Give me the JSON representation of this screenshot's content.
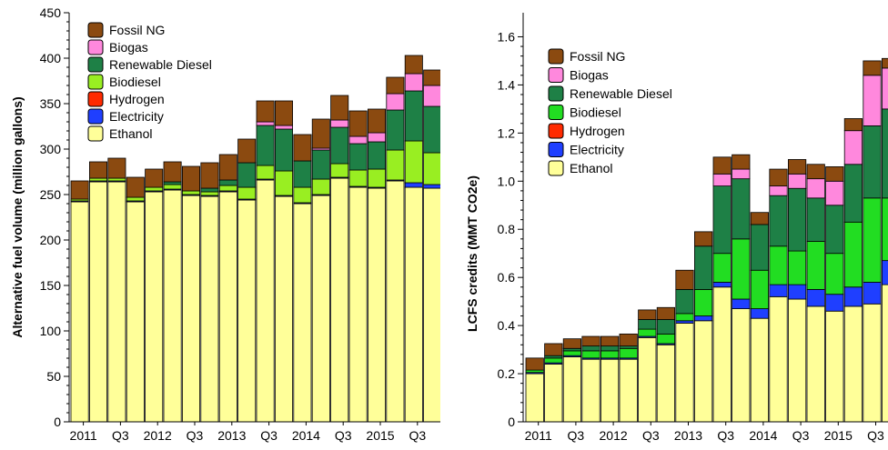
{
  "colors": {
    "Ethanol": "#ffff99",
    "Electricity": "#1f3fff",
    "Hydrogen": "#ff2a00",
    "Biodiesel_left": "#99ee22",
    "Biodiesel_right": "#22dd22",
    "Renewable Diesel": "#1e8046",
    "Biogas": "#ff88dd",
    "Fossil NG": "#8b4a10",
    "axis": "#000000"
  },
  "chart_data": [
    {
      "type": "bar",
      "stacked": true,
      "ylabel": "Alternative fuel volume (million gallons)",
      "ylim": [
        0,
        450
      ],
      "yticks": [
        0,
        50,
        100,
        150,
        200,
        250,
        300,
        350,
        400,
        450
      ],
      "x_tick_labels": [
        "2011",
        "Q3",
        "2012",
        "Q3",
        "2013",
        "Q3",
        "2014",
        "Q3",
        "2015",
        "Q3"
      ],
      "legend": [
        "Fossil NG",
        "Biogas",
        "Renewable Diesel",
        "Biodiesel",
        "Hydrogen",
        "Electricity",
        "Ethanol"
      ],
      "legend_position": "top-left",
      "categories": [
        "2011 Q1",
        "2011 Q2",
        "2011 Q3",
        "2011 Q4",
        "2012 Q1",
        "2012 Q2",
        "2012 Q3",
        "2012 Q4",
        "2013 Q1",
        "2013 Q2",
        "2013 Q3",
        "2013 Q4",
        "2014 Q1",
        "2014 Q2",
        "2014 Q3",
        "2014 Q4",
        "2015 Q1",
        "2015 Q2",
        "2015 Q3",
        "2015 Q4"
      ],
      "series": [
        {
          "name": "Ethanol",
          "values": [
            242,
            264,
            264,
            242,
            253,
            255,
            249,
            248,
            253,
            244,
            266,
            248,
            240,
            249,
            268,
            258,
            257,
            265,
            258,
            257
          ]
        },
        {
          "name": "Electricity",
          "values": [
            1,
            1,
            1,
            1,
            1,
            1,
            1,
            1,
            1,
            1,
            1,
            1,
            1,
            1,
            1,
            1,
            1,
            1,
            5,
            4
          ]
        },
        {
          "name": "Hydrogen",
          "values": [
            0,
            0,
            0,
            0,
            0,
            0,
            0,
            0,
            0,
            0,
            0,
            0,
            0,
            0,
            0,
            0,
            0,
            0,
            0,
            0
          ]
        },
        {
          "name": "Biodiesel",
          "values": [
            2,
            3,
            3,
            4,
            4,
            5,
            4,
            4,
            6,
            13,
            15,
            27,
            17,
            17,
            15,
            18,
            20,
            33,
            46,
            35
          ]
        },
        {
          "name": "Renewable Diesel",
          "values": [
            0,
            0,
            0,
            0,
            0,
            3,
            0,
            4,
            6,
            27,
            44,
            46,
            29,
            32,
            40,
            29,
            30,
            44,
            55,
            51
          ]
        },
        {
          "name": "Biogas",
          "values": [
            0,
            0,
            0,
            0,
            0,
            0,
            0,
            0,
            0,
            0,
            4,
            4,
            0,
            2,
            8,
            8,
            10,
            18,
            19,
            23
          ]
        },
        {
          "name": "Fossil NG",
          "values": [
            20,
            18,
            22,
            22,
            20,
            22,
            27,
            28,
            28,
            26,
            23,
            27,
            29,
            32,
            27,
            28,
            26,
            18,
            20,
            17
          ]
        }
      ]
    },
    {
      "type": "bar",
      "stacked": true,
      "ylabel": "LCFS credits (MMT CO2e)",
      "ylim": [
        0,
        1.7
      ],
      "yticks": [
        0,
        0.2,
        0.4,
        0.6,
        0.8,
        1.0,
        1.2,
        1.4,
        1.6
      ],
      "ytick_labels": [
        "0",
        "0.2",
        "0.4",
        "0.6",
        "0.8",
        "1.0",
        "1.2",
        "1.4",
        "1.6"
      ],
      "x_tick_labels": [
        "2011",
        "Q3",
        "2012",
        "Q3",
        "2013",
        "Q3",
        "2014",
        "Q3",
        "2015",
        "Q3"
      ],
      "legend": [
        "Fossil NG",
        "Biogas",
        "Renewable Diesel",
        "Biodiesel",
        "Hydrogen",
        "Electricity",
        "Ethanol"
      ],
      "legend_position": "top-left",
      "categories": [
        "2011 Q1",
        "2011 Q2",
        "2011 Q3",
        "2011 Q4",
        "2012 Q1",
        "2012 Q2",
        "2012 Q3",
        "2012 Q4",
        "2013 Q1",
        "2013 Q2",
        "2013 Q3",
        "2013 Q4",
        "2014 Q1",
        "2014 Q2",
        "2014 Q3",
        "2014 Q4",
        "2015 Q1",
        "2015 Q2",
        "2015 Q3",
        "2015 Q4"
      ],
      "series": [
        {
          "name": "Ethanol",
          "values": [
            0.2,
            0.24,
            0.27,
            0.26,
            0.26,
            0.26,
            0.35,
            0.32,
            0.41,
            0.42,
            0.56,
            0.47,
            0.43,
            0.52,
            0.51,
            0.48,
            0.46,
            0.48,
            0.49,
            0.57
          ]
        },
        {
          "name": "Electricity",
          "values": [
            0.005,
            0.005,
            0.005,
            0.005,
            0.005,
            0.005,
            0.005,
            0.005,
            0.01,
            0.02,
            0.02,
            0.04,
            0.04,
            0.05,
            0.06,
            0.07,
            0.07,
            0.08,
            0.09,
            0.1
          ]
        },
        {
          "name": "Hydrogen",
          "values": [
            0,
            0,
            0,
            0,
            0,
            0,
            0,
            0,
            0,
            0,
            0,
            0,
            0,
            0,
            0,
            0,
            0,
            0,
            0,
            0
          ]
        },
        {
          "name": "Biodiesel",
          "values": [
            0.01,
            0.02,
            0.02,
            0.03,
            0.03,
            0.04,
            0.03,
            0.04,
            0.03,
            0.11,
            0.12,
            0.25,
            0.16,
            0.16,
            0.14,
            0.2,
            0.17,
            0.27,
            0.35,
            0.26
          ]
        },
        {
          "name": "Renewable Diesel",
          "values": [
            0,
            0.01,
            0.01,
            0.02,
            0.02,
            0.01,
            0.04,
            0.06,
            0.1,
            0.18,
            0.28,
            0.25,
            0.19,
            0.21,
            0.26,
            0.18,
            0.2,
            0.24,
            0.3,
            0.37
          ]
        },
        {
          "name": "Biogas",
          "values": [
            0,
            0,
            0,
            0,
            0,
            0,
            0,
            0,
            0,
            0,
            0.05,
            0.04,
            0,
            0.04,
            0.06,
            0.08,
            0.1,
            0.14,
            0.21,
            0.17
          ]
        },
        {
          "name": "Fossil NG",
          "values": [
            0.05,
            0.05,
            0.04,
            0.04,
            0.04,
            0.05,
            0.04,
            0.05,
            0.08,
            0.06,
            0.07,
            0.06,
            0.05,
            0.07,
            0.06,
            0.06,
            0.06,
            0.05,
            0.06,
            0.04
          ]
        }
      ]
    }
  ]
}
